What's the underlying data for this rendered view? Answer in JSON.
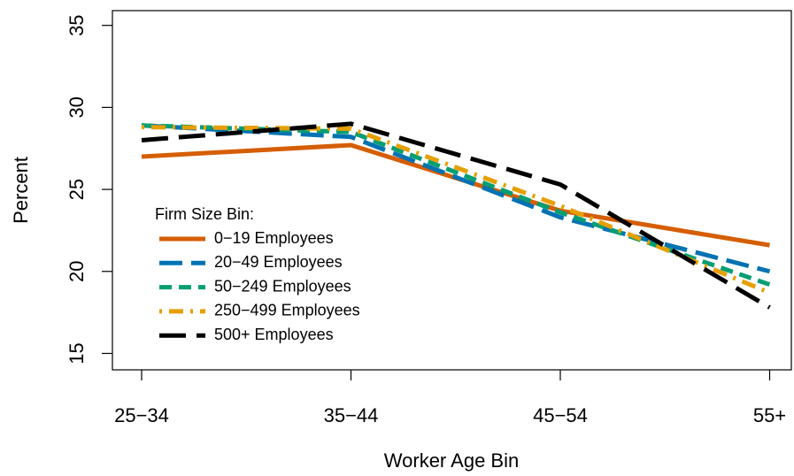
{
  "chart_data": {
    "type": "line",
    "x_label": "Worker Age Bin",
    "y_label": "Percent",
    "categories": [
      "25−34",
      "35−44",
      "45−54",
      "55+"
    ],
    "ylim": [
      14,
      35.9
    ],
    "yticks": [
      15,
      20,
      25,
      30,
      35
    ],
    "legend_title": "Firm Size Bin:",
    "legend_position": "bottom-left",
    "series": [
      {
        "name": "0−19 Employees",
        "color": "#D55E00",
        "linestyle": "solid",
        "values": [
          27.0,
          27.7,
          23.7,
          21.6
        ]
      },
      {
        "name": "20−49 Employees",
        "color": "#0072B2",
        "linestyle": "longdash",
        "values": [
          28.9,
          28.2,
          23.3,
          20.0
        ]
      },
      {
        "name": "50−249 Employees",
        "color": "#009E73",
        "linestyle": "dashed",
        "values": [
          28.9,
          28.5,
          23.6,
          19.2
        ]
      },
      {
        "name": "250−499 Employees",
        "color": "#E69F00",
        "linestyle": "dotdash",
        "values": [
          28.8,
          28.7,
          24.0,
          18.7
        ]
      },
      {
        "name": "500+ Employees",
        "color": "#000000",
        "linestyle": "longdash2",
        "values": [
          28.0,
          29.0,
          25.3,
          17.8
        ]
      }
    ]
  }
}
